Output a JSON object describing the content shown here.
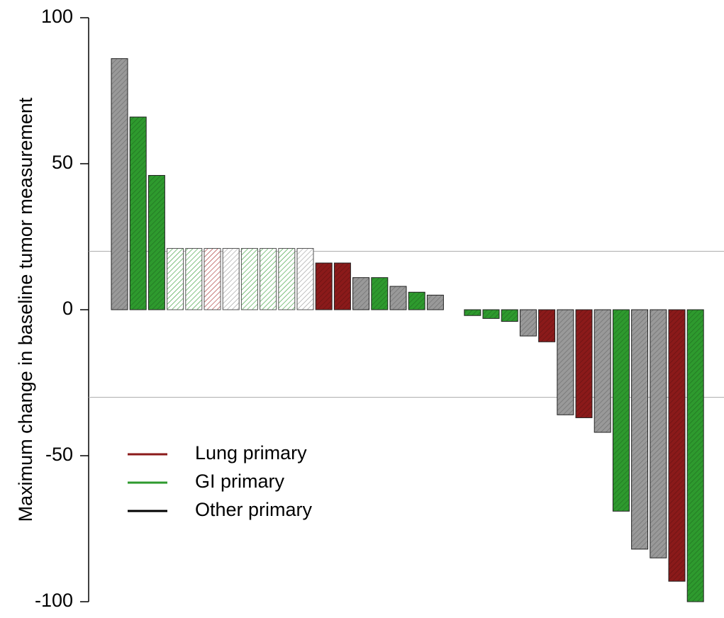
{
  "chart_data": {
    "type": "bar",
    "ylabel": "Maximum change in baseline tumor measurement",
    "ylim": [
      -100,
      100
    ],
    "yticks": [
      100,
      50,
      0,
      -50,
      -100
    ],
    "reference_lines": [
      20,
      -30
    ],
    "values": [
      86,
      66,
      46,
      21,
      21,
      21,
      21,
      21,
      21,
      21,
      21,
      16,
      16,
      11,
      11,
      8,
      6,
      5,
      0,
      -2,
      -3,
      -4,
      -9,
      -11,
      -36,
      -37,
      -42,
      -69,
      -82,
      -85,
      -93,
      -100
    ],
    "colors": [
      "#999999",
      "#2e9a2e",
      "#2e9a2e",
      "#2e9a2e",
      "#2e9a2e",
      "#a52a2a",
      "#999999",
      "#2e9a2e",
      "#2e9a2e",
      "#2e9a2e",
      "#999999",
      "#8b1a1a",
      "#8b1a1a",
      "#999999",
      "#2e9a2e",
      "#999999",
      "#2e9a2e",
      "#999999",
      "#999999",
      "#2e9a2e",
      "#2e9a2e",
      "#2e9a2e",
      "#999999",
      "#8b1a1a",
      "#999999",
      "#8b1a1a",
      "#999999",
      "#2e9a2e",
      "#999999",
      "#999999",
      "#8b1a1a",
      "#2e9a2e"
    ],
    "bar_fill": [
      "solid",
      "solid",
      "solid",
      "light",
      "light",
      "light",
      "light",
      "light",
      "light",
      "light",
      "light",
      "solid",
      "solid",
      "solid",
      "solid",
      "solid",
      "solid",
      "solid",
      "solid",
      "solid",
      "solid",
      "solid",
      "solid",
      "solid",
      "solid",
      "solid",
      "solid",
      "solid",
      "solid",
      "solid",
      "solid",
      "solid"
    ],
    "legend": [
      {
        "name": "Lung primary",
        "color": "#8b1a1a"
      },
      {
        "name": "GI primary",
        "color": "#2e9a2e"
      },
      {
        "name": "Other primary",
        "color": "#000000"
      }
    ]
  }
}
